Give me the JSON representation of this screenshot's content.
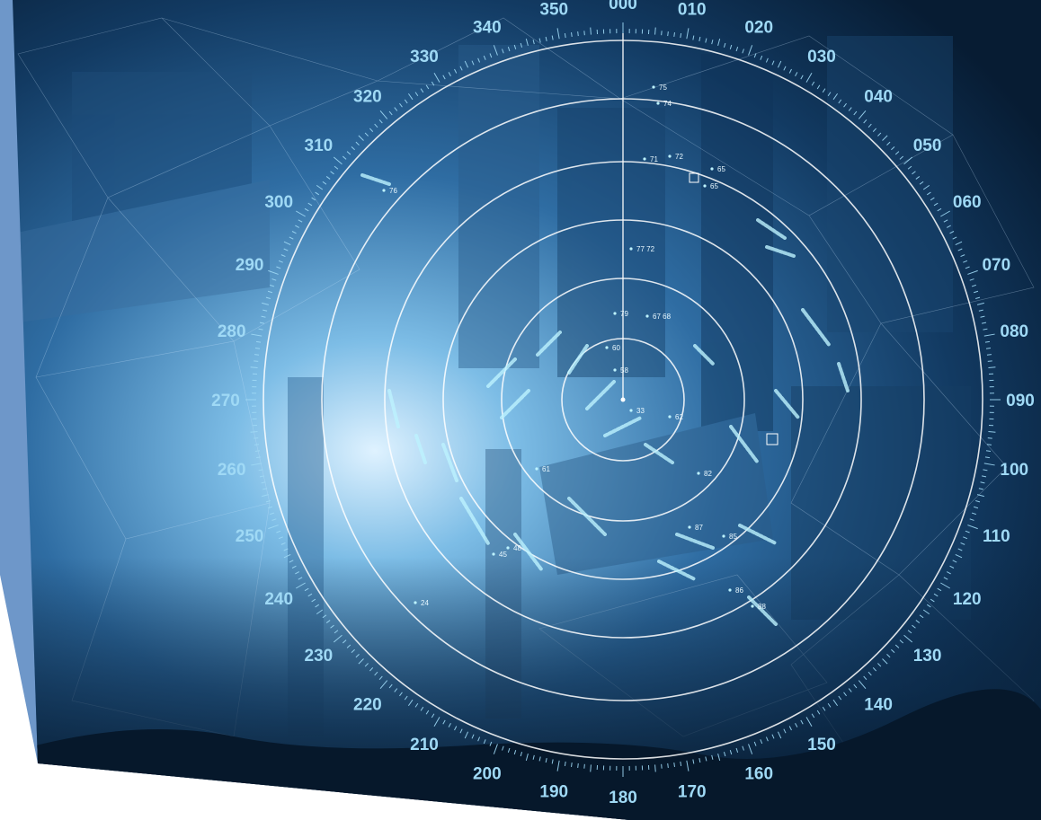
{
  "radar": {
    "bearings": [
      "000",
      "010",
      "020",
      "030",
      "040",
      "050",
      "060",
      "070",
      "080",
      "090",
      "100",
      "110",
      "120",
      "130",
      "140",
      "150",
      "160",
      "170",
      "180",
      "190",
      "200",
      "210",
      "220",
      "230",
      "240",
      "250",
      "260",
      "270",
      "280",
      "290",
      "300",
      "310",
      "320",
      "330",
      "340",
      "350"
    ],
    "range_rings": 6,
    "targets": [
      {
        "label": "75"
      },
      {
        "label": "74"
      },
      {
        "label": "72"
      },
      {
        "label": "71"
      },
      {
        "label": "65"
      },
      {
        "label": "65"
      },
      {
        "label": "77 72"
      },
      {
        "label": "79"
      },
      {
        "label": "67 68"
      },
      {
        "label": "60"
      },
      {
        "label": "58"
      },
      {
        "label": "33"
      },
      {
        "label": "62"
      },
      {
        "label": "61"
      },
      {
        "label": "82"
      },
      {
        "label": "48"
      },
      {
        "label": "45"
      },
      {
        "label": "24"
      },
      {
        "label": "87"
      },
      {
        "label": "85"
      },
      {
        "label": "86"
      },
      {
        "label": "88"
      },
      {
        "label": "76"
      }
    ]
  },
  "colors": {
    "strip": "#6e97c9",
    "sky_light": "#a9d4f1",
    "sky_mid": "#3d7fb6",
    "sky_dark": "#0a2542",
    "ring": "#ffffff",
    "label": "#9fd9f5",
    "echo": "#bdf3ff"
  }
}
